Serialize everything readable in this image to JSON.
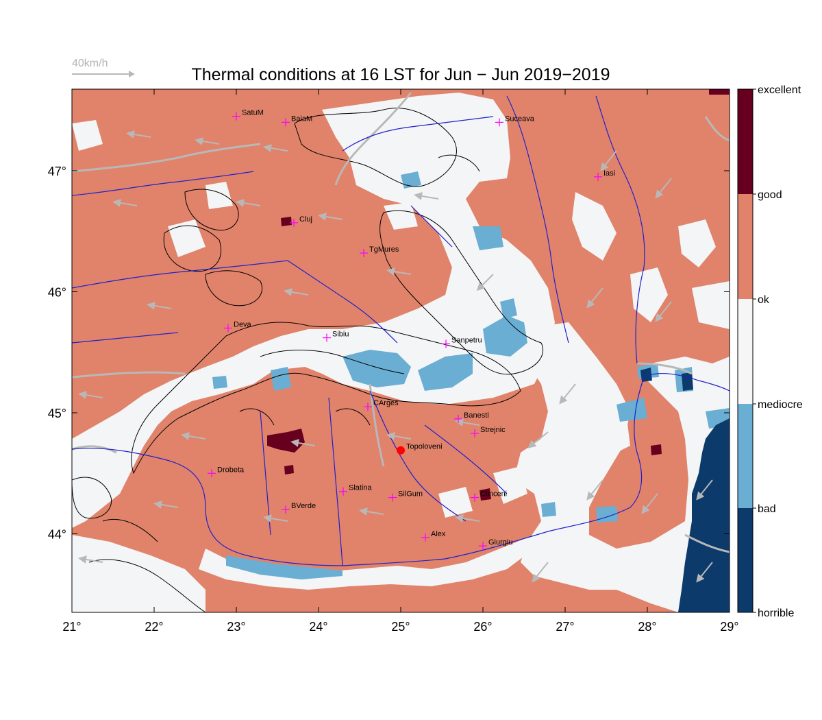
{
  "title": "Thermal conditions at 16 LST for Jun − Jun  2019−2019",
  "wind_reference": {
    "label": "40km/h"
  },
  "lon_ticks": [
    "21°",
    "22°",
    "23°",
    "24°",
    "25°",
    "26°",
    "27°",
    "28°",
    "29°"
  ],
  "lat_ticks": [
    "47°",
    "46°",
    "45°",
    "44°"
  ],
  "legend": {
    "labels": [
      "excellent",
      "good",
      "ok",
      "mediocre",
      "bad",
      "horrible"
    ],
    "colors": {
      "excellent": "#67001f",
      "good": "#e0836a",
      "ok": "#f6f6f6",
      "mediocre": "#6aaed3",
      "bad": "#6aaed3",
      "horrible": "#0b3a6b"
    }
  },
  "colors": {
    "good": "#e0836a",
    "ok": "#f4f5f6",
    "bad": "#6aaed3",
    "horrible": "#0b3a6b",
    "excellent": "#67001f",
    "rivers": "#1f1fcf",
    "contours": "#000000",
    "roads": "#b8b8b8",
    "city_marker": "#ff00ff",
    "target_marker": "#ff0000"
  },
  "cities": [
    {
      "name": "SatuM",
      "lon": 23.0,
      "lat": 47.45
    },
    {
      "name": "BaiaM",
      "lon": 23.6,
      "lat": 47.4
    },
    {
      "name": "Suceava",
      "lon": 26.2,
      "lat": 47.4
    },
    {
      "name": "Iasi",
      "lon": 27.4,
      "lat": 46.95
    },
    {
      "name": "Cluj",
      "lon": 23.7,
      "lat": 46.57
    },
    {
      "name": "TgMures",
      "lon": 24.55,
      "lat": 46.32
    },
    {
      "name": "Deva",
      "lon": 22.9,
      "lat": 45.7
    },
    {
      "name": "Sibiu",
      "lon": 24.1,
      "lat": 45.62
    },
    {
      "name": "Sanpetru",
      "lon": 25.55,
      "lat": 45.57
    },
    {
      "name": "CArges",
      "lon": 24.6,
      "lat": 45.05
    },
    {
      "name": "Banesti",
      "lon": 25.7,
      "lat": 44.95
    },
    {
      "name": "Strejnic",
      "lon": 25.9,
      "lat": 44.83
    },
    {
      "name": "Topoloveni",
      "lon": 25.0,
      "lat": 44.69,
      "target": true
    },
    {
      "name": "Drobeta",
      "lon": 22.7,
      "lat": 44.5
    },
    {
      "name": "Slatina",
      "lon": 24.3,
      "lat": 44.35
    },
    {
      "name": "SilGum",
      "lon": 24.9,
      "lat": 44.3
    },
    {
      "name": "Clinceni",
      "lon": 25.9,
      "lat": 44.3
    },
    {
      "name": "BVerde",
      "lon": 23.6,
      "lat": 44.2
    },
    {
      "name": "Alex",
      "lon": 25.3,
      "lat": 43.97
    },
    {
      "name": "Giurgiu",
      "lon": 26.0,
      "lat": 43.9
    }
  ]
}
